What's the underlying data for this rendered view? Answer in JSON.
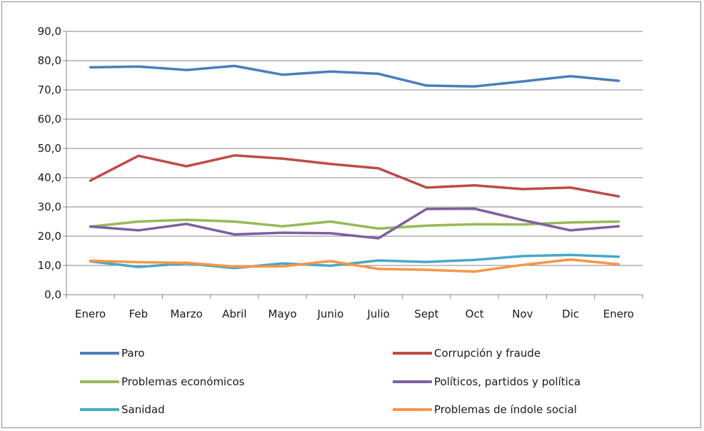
{
  "chart_data": {
    "type": "line",
    "categories": [
      "Enero",
      "Feb",
      "Marzo",
      "Abril",
      "Mayo",
      "Junio",
      "Julio",
      "Sept",
      "Oct",
      "Nov",
      "Dic",
      "Enero"
    ],
    "ylim": [
      0,
      90
    ],
    "yticks": [
      "0,0",
      "10,0",
      "20,0",
      "30,0",
      "40,0",
      "50,0",
      "60,0",
      "70,0",
      "80,0",
      "90,0"
    ],
    "grid": true,
    "legend_position": "bottom",
    "series": [
      {
        "name": "Paro",
        "color": "#4a7ebb",
        "values": [
          77.7,
          78.0,
          76.8,
          78.2,
          75.2,
          76.3,
          75.5,
          71.5,
          71.2,
          72.9,
          74.7,
          73.1
        ]
      },
      {
        "name": "Corrupción y fraude",
        "color": "#be4b48",
        "values": [
          39.0,
          47.5,
          43.9,
          47.6,
          46.5,
          44.7,
          43.2,
          36.6,
          37.4,
          36.1,
          36.6,
          33.6
        ]
      },
      {
        "name": "Problemas económicos",
        "color": "#98b954",
        "values": [
          23.3,
          25.0,
          25.6,
          25.0,
          23.4,
          25.0,
          22.6,
          23.6,
          24.1,
          24.0,
          24.7,
          25.0
        ]
      },
      {
        "name": "Políticos, partidos y política",
        "color": "#7d60a0",
        "values": [
          23.3,
          22.0,
          24.2,
          20.6,
          21.2,
          21.0,
          19.3,
          29.3,
          29.4,
          25.5,
          22.0,
          23.4
        ]
      },
      {
        "name": "Sanidad",
        "color": "#46aac5",
        "values": [
          11.4,
          9.5,
          10.7,
          9.1,
          10.7,
          9.9,
          11.7,
          11.2,
          11.9,
          13.2,
          13.6,
          13.0
        ]
      },
      {
        "name": "Problemas de índole social",
        "color": "#f79646",
        "values": [
          11.6,
          11.1,
          10.9,
          9.6,
          9.7,
          11.5,
          8.8,
          8.5,
          7.9,
          10.2,
          12.0,
          10.4
        ]
      }
    ]
  }
}
